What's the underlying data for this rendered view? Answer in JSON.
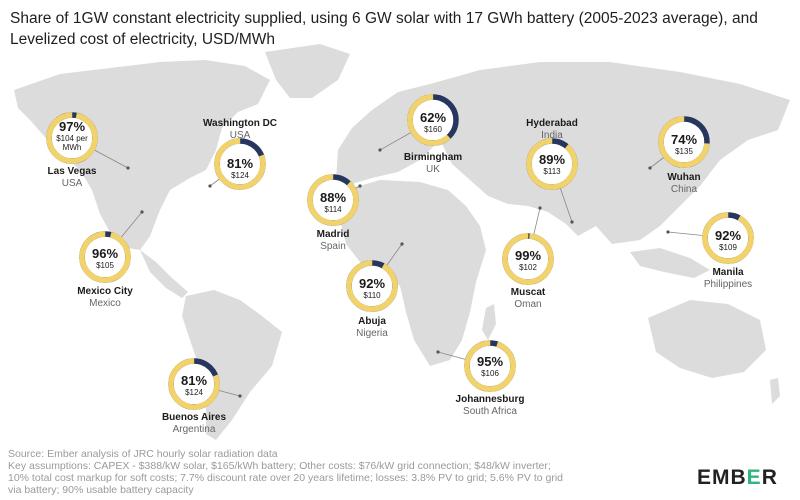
{
  "title": "Share of 1GW constant electricity supplied, using 6 GW solar with 17 GWh battery (2005-2023 average), and Levelized cost of electricity, USD/MWh",
  "colors": {
    "ring": "#f2d36b",
    "ring_share": "#f2d36b",
    "ring_gap": "#26365f",
    "land": "#dcdcdc",
    "connector": "#888888"
  },
  "cities": [
    {
      "name": "Las Vegas",
      "country": "USA",
      "share": 97,
      "share_label": "97%",
      "cost_label": "$104 per MWh"
    },
    {
      "name": "Washington DC",
      "country": "USA",
      "share": 81,
      "share_label": "81%",
      "cost_label": "$124"
    },
    {
      "name": "Birmingham",
      "country": "UK",
      "share": 62,
      "share_label": "62%",
      "cost_label": "$160"
    },
    {
      "name": "Hyderabad",
      "country": "India",
      "share": 89,
      "share_label": "89%",
      "cost_label": "$113"
    },
    {
      "name": "Wuhan",
      "country": "China",
      "share": 74,
      "share_label": "74%",
      "cost_label": "$135"
    },
    {
      "name": "Madrid",
      "country": "Spain",
      "share": 88,
      "share_label": "88%",
      "cost_label": "$114"
    },
    {
      "name": "Mexico City",
      "country": "Mexico",
      "share": 96,
      "share_label": "96%",
      "cost_label": "$105"
    },
    {
      "name": "Abuja",
      "country": "Nigeria",
      "share": 92,
      "share_label": "92%",
      "cost_label": "$110"
    },
    {
      "name": "Muscat",
      "country": "Oman",
      "share": 99,
      "share_label": "99%",
      "cost_label": "$102"
    },
    {
      "name": "Manila",
      "country": "Philippines",
      "share": 92,
      "share_label": "92%",
      "cost_label": "$109"
    },
    {
      "name": "Johannesburg",
      "country": "South Africa",
      "share": 95,
      "share_label": "95%",
      "cost_label": "$106"
    },
    {
      "name": "Buenos Aires",
      "country": "Argentina",
      "share": 81,
      "share_label": "81%",
      "cost_label": "$124"
    }
  ],
  "footer": {
    "source": "Source: Ember analysis of JRC hourly solar radiation data",
    "assumptions_1": "Key assumptions: CAPEX - $388/kW solar, $165/kWh battery; Other costs: $76/kW grid connection; $48/kW inverter;",
    "assumptions_2": "10% total cost markup for soft costs; 7.7% discount rate over 20 years lifetime; losses: 3.8% PV to grid; 5.6% PV to grid",
    "assumptions_3": "via battery; 90% usable battery capacity"
  },
  "logo": {
    "part1": "EMB",
    "part2": "E",
    "part3": "R"
  }
}
